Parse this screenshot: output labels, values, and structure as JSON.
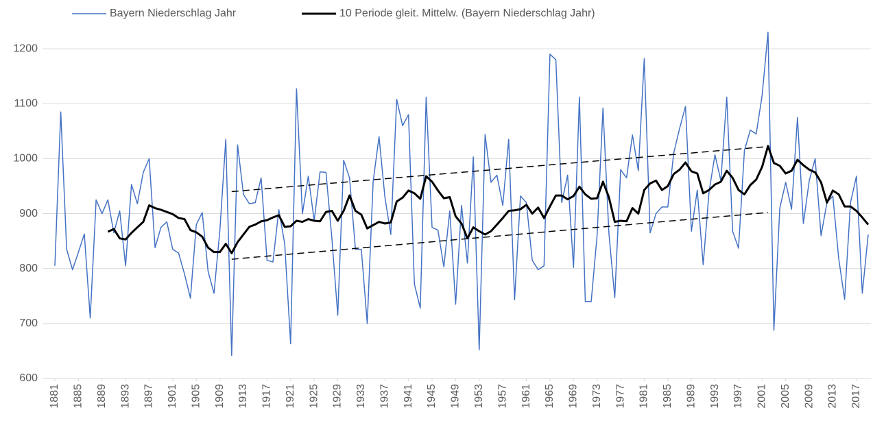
{
  "chart_data": {
    "type": "line",
    "x": [
      1881,
      1882,
      1883,
      1884,
      1885,
      1886,
      1887,
      1888,
      1889,
      1890,
      1891,
      1892,
      1893,
      1894,
      1895,
      1896,
      1897,
      1898,
      1899,
      1900,
      1901,
      1902,
      1903,
      1904,
      1905,
      1906,
      1907,
      1908,
      1909,
      1910,
      1911,
      1912,
      1913,
      1914,
      1915,
      1916,
      1917,
      1918,
      1919,
      1920,
      1921,
      1922,
      1923,
      1924,
      1925,
      1926,
      1927,
      1928,
      1929,
      1930,
      1931,
      1932,
      1933,
      1934,
      1935,
      1936,
      1937,
      1938,
      1939,
      1940,
      1941,
      1942,
      1943,
      1944,
      1945,
      1946,
      1947,
      1948,
      1949,
      1950,
      1951,
      1952,
      1953,
      1954,
      1955,
      1956,
      1957,
      1958,
      1959,
      1960,
      1961,
      1962,
      1963,
      1964,
      1965,
      1966,
      1967,
      1968,
      1969,
      1970,
      1971,
      1972,
      1973,
      1974,
      1975,
      1976,
      1977,
      1978,
      1979,
      1980,
      1981,
      1982,
      1983,
      1984,
      1985,
      1986,
      1987,
      1988,
      1989,
      1990,
      1991,
      1992,
      1993,
      1994,
      1995,
      1996,
      1997,
      1998,
      1999,
      2000,
      2001,
      2002,
      2003,
      2004,
      2005,
      2006,
      2007,
      2008,
      2009,
      2010,
      2011,
      2012,
      2013,
      2014,
      2015,
      2016,
      2017,
      2018,
      2019
    ],
    "series": [
      {
        "name": "Bayern Niederschlag Jahr",
        "color": "#4472c4",
        "width": 1.5,
        "values": [
          805,
          1085,
          835,
          798,
          830,
          863,
          710,
          925,
          900,
          925,
          865,
          905,
          805,
          953,
          918,
          975,
          1000,
          838,
          875,
          885,
          835,
          828,
          790,
          746,
          880,
          902,
          795,
          755,
          870,
          1035,
          642,
          1025,
          935,
          918,
          920,
          965,
          815,
          812,
          907,
          845,
          663,
          1127,
          900,
          968,
          887,
          976,
          975,
          855,
          715,
          997,
          965,
          835,
          835,
          700,
          958,
          1040,
          930,
          862,
          1108,
          1060,
          1080,
          772,
          728,
          1112,
          875,
          870,
          803,
          905,
          735,
          915,
          810,
          1003,
          652,
          1044,
          957,
          970,
          915,
          1035,
          743,
          932,
          920,
          815,
          798,
          805,
          1190,
          1180,
          920,
          970,
          802,
          1112,
          740,
          740,
          860,
          1092,
          865,
          747,
          980,
          965,
          1043,
          978,
          1182,
          865,
          900,
          912,
          912,
          1010,
          1055,
          1095,
          868,
          943,
          807,
          940,
          1007,
          960,
          1112,
          868,
          837,
          1015,
          1052,
          1045,
          1115,
          1230,
          688,
          910,
          957,
          908,
          1075,
          882,
          960,
          1000,
          860,
          920,
          932,
          818,
          744,
          920,
          968,
          755,
          862
        ]
      },
      {
        "name": "10 Periode gleit. Mittelw. (Bayern Niederschlag Jahr)",
        "color": "#000000",
        "width": 3,
        "values": [
          null,
          null,
          null,
          null,
          null,
          null,
          null,
          null,
          null,
          867,
          872,
          855,
          853,
          865,
          875,
          885,
          915,
          910,
          907,
          903,
          899,
          892,
          890,
          870,
          866,
          858,
          838,
          830,
          830,
          845,
          828,
          848,
          862,
          876,
          880,
          886,
          888,
          893,
          897,
          876,
          877,
          887,
          885,
          890,
          887,
          886,
          903,
          905,
          887,
          905,
          933,
          905,
          898,
          873,
          879,
          885,
          882,
          884,
          922,
          929,
          942,
          937,
          927,
          968,
          958,
          942,
          928,
          930,
          895,
          882,
          855,
          875,
          868,
          862,
          868,
          880,
          892,
          905,
          906,
          908,
          916,
          900,
          911,
          892,
          913,
          933,
          933,
          926,
          932,
          949,
          935,
          927,
          928,
          958,
          930,
          885,
          887,
          886,
          910,
          900,
          943,
          955,
          960,
          943,
          950,
          972,
          980,
          993,
          977,
          973,
          937,
          943,
          953,
          958,
          978,
          965,
          943,
          935,
          952,
          962,
          985,
          1023,
          992,
          987,
          973,
          978,
          998,
          988,
          980,
          975,
          957,
          920,
          942,
          935,
          913,
          913,
          905,
          893,
          880
        ]
      }
    ],
    "trend_lines": [
      {
        "x": [
          1911,
          2002
        ],
        "values": [
          940,
          1022
        ]
      },
      {
        "x": [
          1911,
          2002
        ],
        "values": [
          817,
          902
        ]
      }
    ],
    "xlim": [
      1881,
      2019
    ],
    "xticks": [
      1881,
      1885,
      1889,
      1893,
      1897,
      1901,
      1905,
      1909,
      1913,
      1917,
      1921,
      1925,
      1929,
      1933,
      1937,
      1941,
      1945,
      1949,
      1953,
      1957,
      1961,
      1965,
      1969,
      1973,
      1977,
      1981,
      1985,
      1989,
      1993,
      1997,
      2001,
      2005,
      2009,
      2013,
      2017
    ],
    "ylim": [
      600,
      1250
    ],
    "yticks": [
      600,
      700,
      800,
      900,
      1000,
      1100,
      1200
    ],
    "grid": true,
    "legend": "top"
  }
}
